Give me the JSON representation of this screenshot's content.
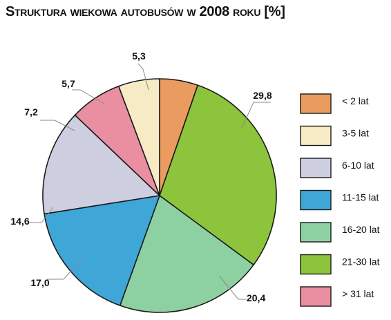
{
  "chart_data": {
    "type": "pie",
    "title": "Struktura wiekowa autobusów w 2008 roku [%]",
    "slices": [
      {
        "label": "< 2 lat",
        "value": 5.3,
        "value_label": "5,3",
        "color": "#ea9c60"
      },
      {
        "label": "21-30 lat",
        "value": 29.8,
        "value_label": "29,8",
        "color": "#8cc43c"
      },
      {
        "label": "16-20 lat",
        "value": 20.4,
        "value_label": "20,4",
        "color": "#8dd0a2"
      },
      {
        "label": "11-15 lat",
        "value": 17.0,
        "value_label": "17,0",
        "color": "#3fa6d8"
      },
      {
        "label": "6-10 lat",
        "value": 14.6,
        "value_label": "14,6",
        "color": "#cdcfe0"
      },
      {
        "label": "> 31 lat",
        "value": 7.2,
        "value_label": "7,2",
        "color": "#ea8ea2"
      },
      {
        "label": "3-5 lat",
        "value": 5.7,
        "value_label": "5,7",
        "color": "#f6ebc4"
      }
    ],
    "legend": [
      {
        "label": "< 2 lat",
        "color": "#ea9c60"
      },
      {
        "label": "3-5 lat",
        "color": "#f6ebc4"
      },
      {
        "label": "6-10 lat",
        "color": "#cdcfe0"
      },
      {
        "label": "11-15 lat",
        "color": "#3fa6d8"
      },
      {
        "label": "16-20 lat",
        "color": "#8dd0a2"
      },
      {
        "label": "21-30 lat",
        "color": "#8cc43c"
      },
      {
        "label": "> 31 lat",
        "color": "#ea8ea2"
      }
    ],
    "legend_placement": "right"
  }
}
